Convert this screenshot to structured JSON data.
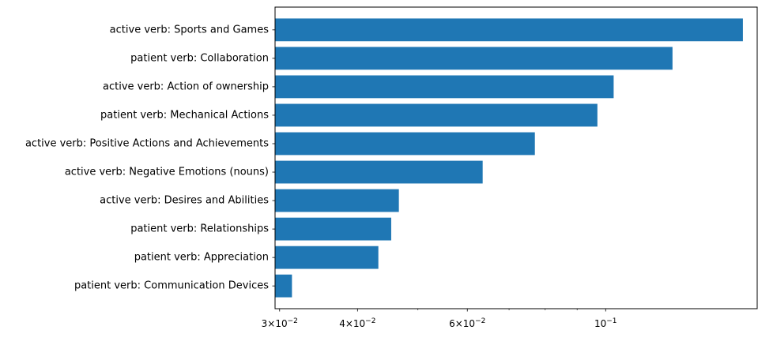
{
  "chart_data": {
    "type": "bar",
    "orientation": "horizontal",
    "x_scale": "log",
    "title": "",
    "xlabel": "",
    "ylabel": "",
    "xlim": [
      0.0295,
      0.175
    ],
    "grid": false,
    "bar_color": "#1f77b4",
    "categories": [
      "active verb: Sports and Games",
      "patient verb: Collaboration",
      "active verb: Action of ownership",
      "patient verb: Mechanical Actions",
      "active verb: Positive Actions and Achievements",
      "active verb: Negative Emotions (nouns)",
      "active verb: Desires and Abilities",
      "patient verb: Relationships",
      "patient verb: Appreciation",
      "patient verb: Communication Devices"
    ],
    "values": [
      0.166,
      0.128,
      0.103,
      0.097,
      0.077,
      0.0635,
      0.0466,
      0.0453,
      0.0432,
      0.0314
    ],
    "x_ticks": [
      {
        "value": 0.03,
        "base": "3×10",
        "exp": "−2"
      },
      {
        "value": 0.04,
        "base": "4×10",
        "exp": "−2"
      },
      {
        "value": 0.06,
        "base": "6×10",
        "exp": "−2"
      },
      {
        "value": 0.1,
        "base": "10",
        "exp": "−1"
      }
    ],
    "x_minor_ticks": [
      0.05,
      0.07,
      0.08,
      0.09
    ]
  }
}
